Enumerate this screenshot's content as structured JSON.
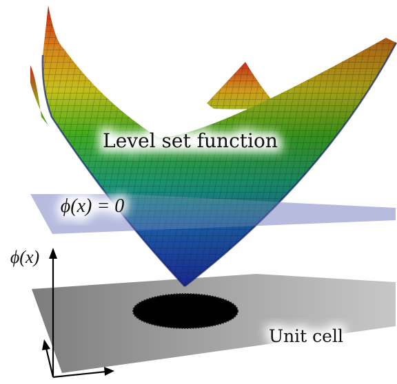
{
  "labels": {
    "surface": "Level set function",
    "zero_plane": "ϕ(x) = 0",
    "axis": "ϕ(x)",
    "unit_cell": "Unit cell"
  },
  "colors": {
    "surface_bottom": "#1b2a9c",
    "surface_low": "#1f7fa0",
    "surface_mid": "#3fae1e",
    "surface_high": "#d4b21a",
    "surface_top": "#c6251a",
    "zero_plane": "#8f97cc",
    "unit_cell": "#9b9b9b",
    "hole": "#000000",
    "axis": "#000000"
  }
}
